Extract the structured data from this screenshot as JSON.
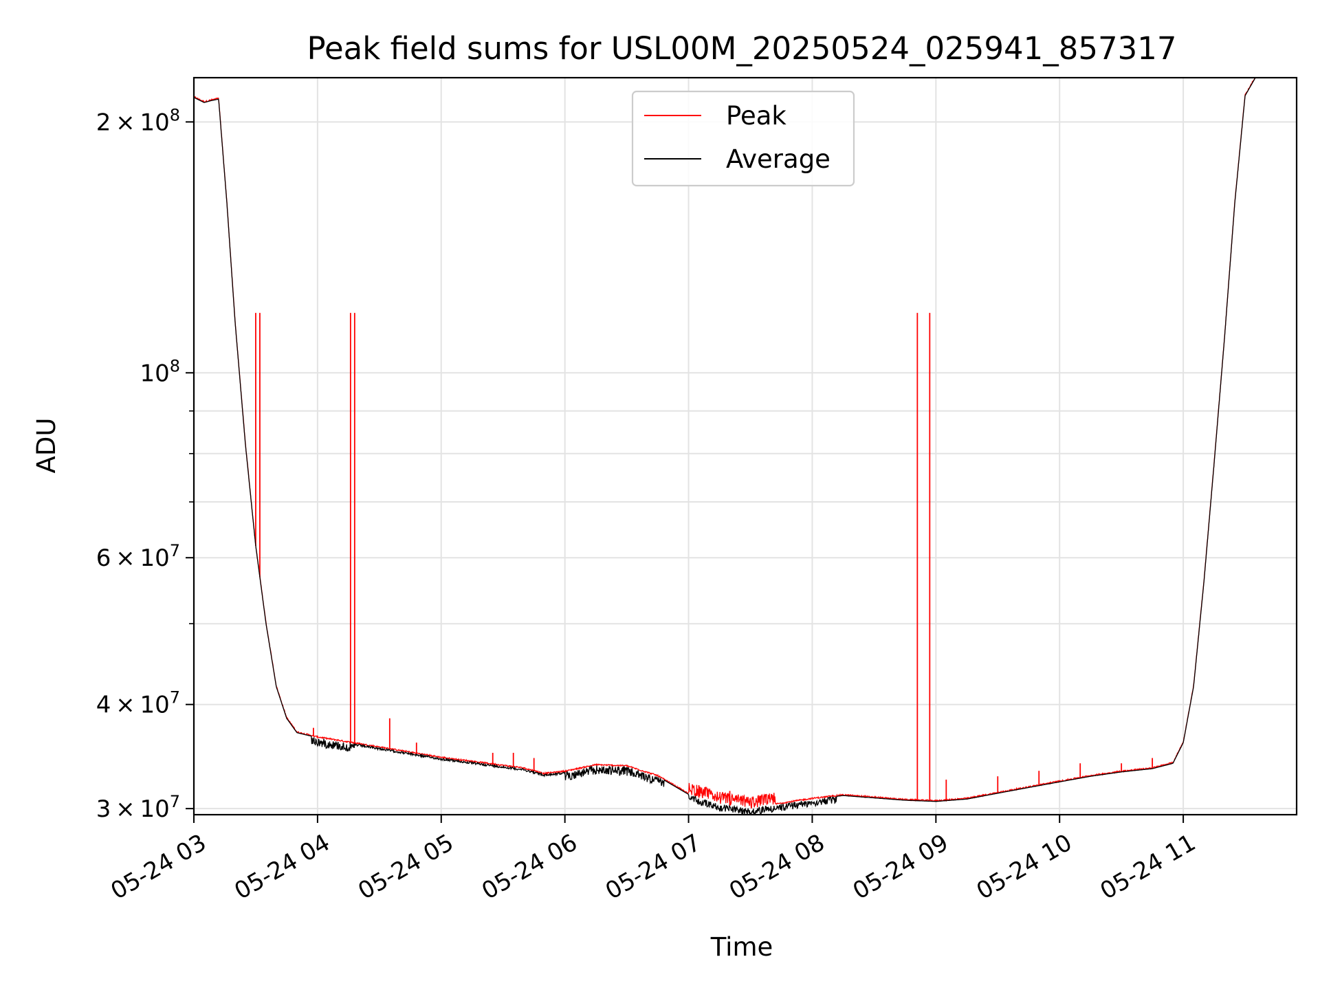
{
  "chart_data": {
    "type": "line",
    "title": "Peak field sums for USL00M_20250524_025941_857317",
    "xlabel": "Time",
    "ylabel": "ADU",
    "x_range": [
      "2025-05-24 03:00",
      "2025-05-24 11:55"
    ],
    "ylim": [
      29500000,
      226000000
    ],
    "y_scale": "log",
    "grid": true,
    "legend_position": "top-center",
    "x_tick_labels": [
      "05-24 03",
      "05-24 04",
      "05-24 05",
      "05-24 06",
      "05-24 07",
      "05-24 08",
      "05-24 09",
      "05-24 10",
      "05-24 11"
    ],
    "x_tick_times": [
      "2025-05-24 03:00",
      "2025-05-24 04:00",
      "2025-05-24 05:00",
      "2025-05-24 06:00",
      "2025-05-24 07:00",
      "2025-05-24 08:00",
      "2025-05-24 09:00",
      "2025-05-24 10:00",
      "2025-05-24 11:00"
    ],
    "y_ticks": [
      {
        "value": 30000000,
        "label": "3 × 10^7",
        "mant": "3",
        "exp": "7"
      },
      {
        "value": 40000000,
        "label": "4 × 10^7",
        "mant": "4",
        "exp": "7"
      },
      {
        "value": 60000000,
        "label": "6 × 10^7",
        "mant": "6",
        "exp": "7"
      },
      {
        "value": 100000000,
        "label": "10^8",
        "mant": "",
        "exp": "8"
      },
      {
        "value": 200000000,
        "label": "2 × 10^8",
        "mant": "2",
        "exp": "8"
      }
    ],
    "y_minor_grid": [
      50000000,
      70000000,
      80000000,
      90000000
    ],
    "series": [
      {
        "name": "Average",
        "color": "#000000",
        "times": [
          "2025-05-24 03:00",
          "2025-05-24 03:05",
          "2025-05-24 03:08",
          "2025-05-24 03:12",
          "2025-05-24 03:16",
          "2025-05-24 03:20",
          "2025-05-24 03:25",
          "2025-05-24 03:30",
          "2025-05-24 03:35",
          "2025-05-24 03:40",
          "2025-05-24 03:45",
          "2025-05-24 03:50",
          "2025-05-24 04:00",
          "2025-05-24 04:15",
          "2025-05-24 04:30",
          "2025-05-24 04:45",
          "2025-05-24 05:00",
          "2025-05-24 05:20",
          "2025-05-24 05:40",
          "2025-05-24 05:50",
          "2025-05-24 06:00",
          "2025-05-24 06:15",
          "2025-05-24 06:30",
          "2025-05-24 06:45",
          "2025-05-24 07:00",
          "2025-05-24 07:15",
          "2025-05-24 07:30",
          "2025-05-24 07:45",
          "2025-05-24 08:00",
          "2025-05-24 08:15",
          "2025-05-24 08:30",
          "2025-05-24 08:45",
          "2025-05-24 09:00",
          "2025-05-24 09:15",
          "2025-05-24 09:30",
          "2025-05-24 09:45",
          "2025-05-24 10:00",
          "2025-05-24 10:15",
          "2025-05-24 10:30",
          "2025-05-24 10:45",
          "2025-05-24 10:55",
          "2025-05-24 11:00",
          "2025-05-24 11:05",
          "2025-05-24 11:10",
          "2025-05-24 11:15",
          "2025-05-24 11:20",
          "2025-05-24 11:25",
          "2025-05-24 11:30",
          "2025-05-24 11:35",
          "2025-05-24 11:40"
        ],
        "values": [
          214000000,
          211000000,
          212000000,
          213000000,
          160000000,
          115000000,
          82000000,
          62000000,
          50000000,
          42000000,
          38500000,
          37000000,
          36500000,
          36000000,
          35500000,
          35000000,
          34500000,
          34000000,
          33500000,
          33000000,
          33200000,
          33800000,
          33700000,
          32800000,
          31200000,
          30400000,
          30000000,
          30400000,
          30800000,
          31100000,
          30900000,
          30700000,
          30600000,
          30800000,
          31300000,
          31800000,
          32300000,
          32800000,
          33200000,
          33500000,
          34000000,
          36000000,
          42000000,
          56000000,
          78000000,
          110000000,
          160000000,
          215000000,
          226000000,
          226000000
        ]
      },
      {
        "name": "Peak",
        "color": "#ff0000",
        "spikes": [
          {
            "time": "2025-05-24 03:30",
            "value": 118000000
          },
          {
            "time": "2025-05-24 03:32",
            "value": 118000000
          },
          {
            "time": "2025-05-24 04:16",
            "value": 118000000
          },
          {
            "time": "2025-05-24 04:18",
            "value": 118000000
          },
          {
            "time": "2025-05-24 08:51",
            "value": 118000000
          },
          {
            "time": "2025-05-24 08:57",
            "value": 118000000
          },
          {
            "time": "2025-05-24 03:58",
            "value": 37500000
          },
          {
            "time": "2025-05-24 04:35",
            "value": 38500000
          },
          {
            "time": "2025-05-24 04:48",
            "value": 36000000
          },
          {
            "time": "2025-05-24 05:25",
            "value": 35000000
          },
          {
            "time": "2025-05-24 05:35",
            "value": 35000000
          },
          {
            "time": "2025-05-24 05:45",
            "value": 34500000
          },
          {
            "time": "2025-05-24 07:05",
            "value": 32000000
          },
          {
            "time": "2025-05-24 07:20",
            "value": 31500000
          },
          {
            "time": "2025-05-24 09:05",
            "value": 32500000
          },
          {
            "time": "2025-05-24 09:30",
            "value": 32800000
          },
          {
            "time": "2025-05-24 09:50",
            "value": 33300000
          },
          {
            "time": "2025-05-24 10:10",
            "value": 34000000
          },
          {
            "time": "2025-05-24 10:30",
            "value": 34000000
          },
          {
            "time": "2025-05-24 10:45",
            "value": 34500000
          }
        ]
      }
    ],
    "legend": [
      {
        "name": "Peak",
        "color": "#ff0000"
      },
      {
        "name": "Average",
        "color": "#000000"
      }
    ]
  }
}
